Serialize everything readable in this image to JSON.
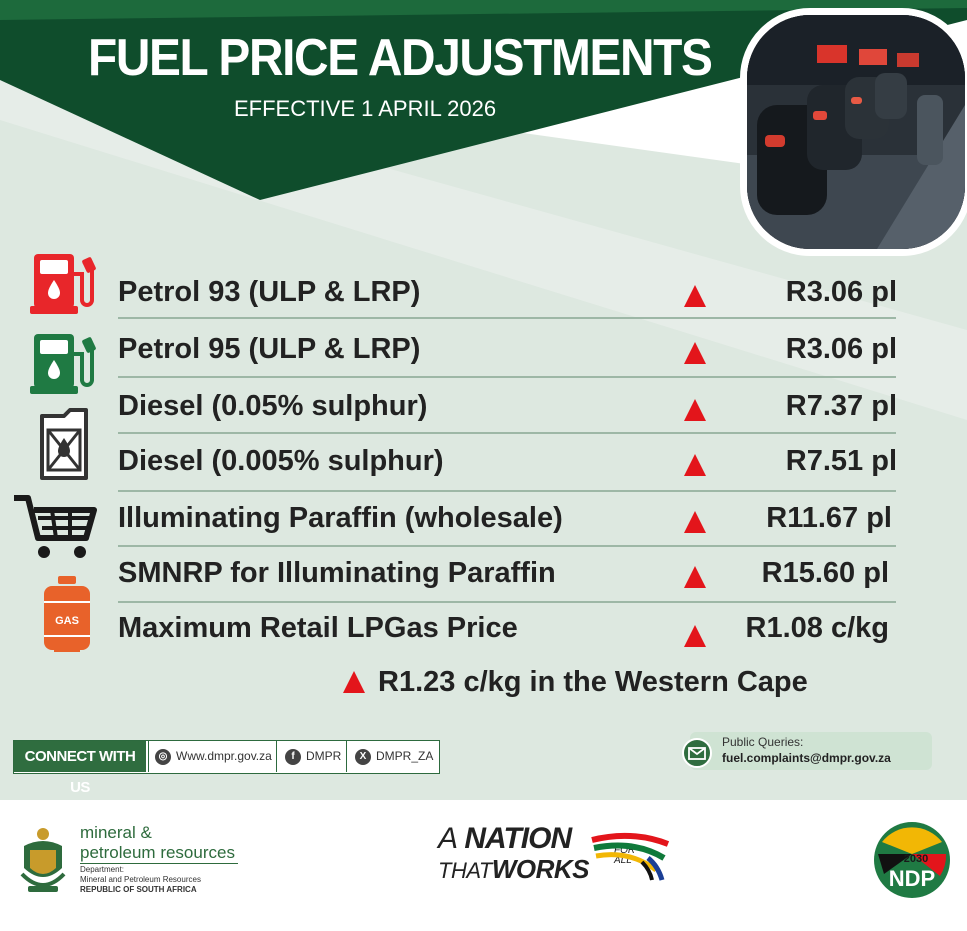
{
  "header": {
    "title": "FUEL PRICE ADJUSTMENTS",
    "subtitle": "EFFECTIVE  1 APRIL 2026"
  },
  "colors": {
    "dark_green": "#0f4d2c",
    "light_green": "#dde8e0",
    "increase_red": "#e3151b",
    "text": "#222222"
  },
  "adjustments": [
    {
      "icon": "petrol-pump-red-icon",
      "product": "Petrol 93 (ULP & LRP)",
      "direction": "increase",
      "amount": "R3.06 pl"
    },
    {
      "icon": "petrol-pump-green-icon",
      "product": "Petrol 95 (ULP & LRP)",
      "direction": "increase",
      "amount": "R3.06 pl"
    },
    {
      "icon": "jerry-can-icon",
      "product": "Diesel (0.05% sulphur)",
      "direction": "increase",
      "amount": "R7.37 pl"
    },
    {
      "icon": "",
      "product": "Diesel (0.005% sulphur)",
      "direction": "increase",
      "amount": "R7.51 pl"
    },
    {
      "icon": "shopping-cart-icon",
      "product": "Illuminating Paraffin (wholesale)",
      "direction": "increase",
      "amount": "R11.67 pl"
    },
    {
      "icon": "",
      "product": "SMNRP for Illuminating Paraffin",
      "direction": "increase",
      "amount": "R15.60 pl"
    },
    {
      "icon": "gas-cylinder-icon",
      "product": "Maximum Retail LPGas Price",
      "direction": "increase",
      "amount": "R1.08 c/kg"
    }
  ],
  "western_cape_note": {
    "direction": "increase",
    "text": "R1.23 c/kg in the Western Cape"
  },
  "connect": {
    "label": "CONNECT WITH US",
    "website": "Www.dmpr.gov.za",
    "facebook": "DMPR",
    "x_handle": "DMPR_ZA"
  },
  "queries": {
    "label": "Public Queries:",
    "email": "fuel.complaints@dmpr.gov.za"
  },
  "footer": {
    "dept_line1": "mineral &",
    "dept_line2": "petroleum resources",
    "dept_small1": "Department:",
    "dept_small2": "Mineral and Petroleum Resources",
    "dept_small3": "REPUBLIC OF SOUTH AFRICA",
    "nation_a": "A",
    "nation_word": "NATION",
    "nation_that": "THAT",
    "nation_works": "WORKS",
    "nation_for": "FOR",
    "nation_all": "ALL",
    "ndp_year": "2030",
    "ndp_label": "NDP"
  }
}
